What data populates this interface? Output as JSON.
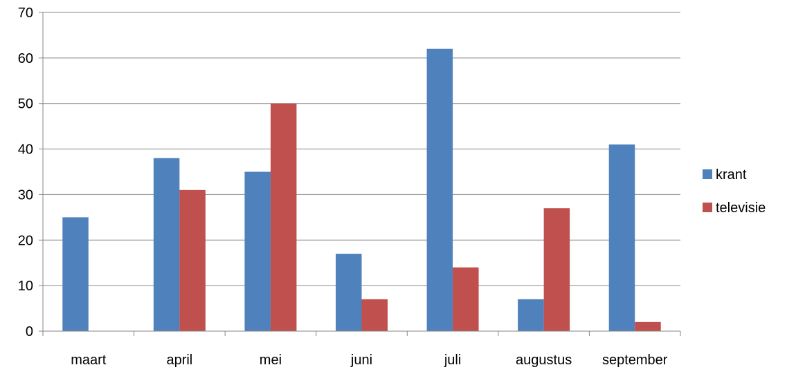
{
  "chart_data": {
    "type": "bar",
    "categories": [
      "maart",
      "april",
      "mei",
      "juni",
      "juli",
      "augustus",
      "september"
    ],
    "series": [
      {
        "name": "krant",
        "color": "#4F81BD",
        "values": [
          25,
          38,
          35,
          17,
          62,
          7,
          41
        ]
      },
      {
        "name": "televisie",
        "color": "#C0504D",
        "values": [
          0,
          31,
          50,
          7,
          14,
          27,
          2
        ]
      }
    ],
    "ylim": [
      0,
      70
    ],
    "yticks": [
      0,
      10,
      20,
      30,
      40,
      50,
      60,
      70
    ],
    "grid": true,
    "legend_position": "right",
    "title": "",
    "xlabel": "",
    "ylabel": ""
  }
}
